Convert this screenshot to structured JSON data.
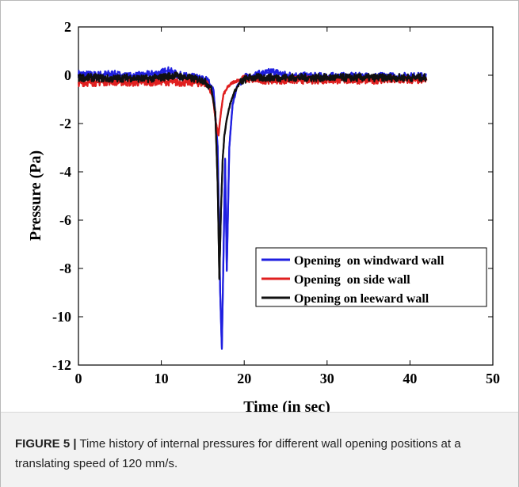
{
  "chart_data": {
    "type": "line",
    "xlabel": "Time (in sec)",
    "ylabel": "Pressure (Pa)",
    "xlim": [
      0,
      50
    ],
    "ylim": [
      -12,
      2
    ],
    "x_ticks": [
      0,
      10,
      20,
      30,
      40,
      50
    ],
    "y_ticks": [
      2,
      0,
      -2,
      -4,
      -6,
      -8,
      -10,
      -12
    ],
    "grid": false,
    "legend_position": "bottom-right",
    "series": [
      {
        "name": "Opening  on windward wall",
        "color": "#1f1fe0",
        "x": [
          0,
          2,
          4,
          6,
          8,
          10,
          10.8,
          12,
          14,
          15.5,
          16.3,
          16.8,
          17.1,
          17.3,
          17.5,
          17.7,
          17.9,
          18.2,
          18.6,
          19.2,
          20,
          22,
          23.5,
          25,
          28,
          32,
          36,
          40,
          42
        ],
        "y": [
          0.05,
          0.0,
          0.05,
          -0.05,
          0.0,
          0.1,
          0.2,
          0.0,
          -0.1,
          -0.2,
          -0.6,
          -3.0,
          -9.0,
          -11.3,
          -7.5,
          -3.5,
          -8.1,
          -3.0,
          -1.2,
          -0.4,
          -0.1,
          0.05,
          0.15,
          0.0,
          -0.05,
          -0.05,
          -0.05,
          -0.05,
          -0.05
        ]
      },
      {
        "name": "Opening  on side wall",
        "color": "#e01f1f",
        "x": [
          0,
          2,
          4,
          6,
          8,
          10,
          12,
          14,
          15.5,
          16.2,
          16.6,
          16.9,
          17.2,
          17.5,
          18,
          18.6,
          19.3,
          20,
          22,
          25,
          28,
          32,
          36,
          40,
          42
        ],
        "y": [
          -0.3,
          -0.3,
          -0.25,
          -0.3,
          -0.3,
          -0.25,
          -0.3,
          -0.3,
          -0.35,
          -0.9,
          -2.0,
          -2.5,
          -1.5,
          -0.8,
          -0.5,
          -0.3,
          -0.2,
          -0.15,
          -0.2,
          -0.2,
          -0.2,
          -0.2,
          -0.2,
          -0.2,
          -0.2
        ]
      },
      {
        "name": "Opening on leeward wall",
        "color": "#111111",
        "x": [
          0,
          2,
          4,
          6,
          8,
          10,
          11.5,
          13,
          15,
          16.0,
          16.5,
          16.8,
          17.0,
          17.2,
          17.4,
          17.6,
          17.9,
          18.3,
          18.8,
          19.5,
          20.5,
          22,
          25,
          28,
          32,
          36,
          40,
          42
        ],
        "y": [
          -0.1,
          -0.1,
          -0.15,
          -0.1,
          -0.15,
          -0.1,
          0.0,
          -0.1,
          -0.2,
          -0.5,
          -1.5,
          -4.5,
          -8.4,
          -5.6,
          -3.5,
          -2.5,
          -1.8,
          -1.2,
          -0.7,
          -0.3,
          -0.1,
          -0.1,
          -0.1,
          -0.1,
          -0.1,
          -0.1,
          -0.1,
          -0.1
        ]
      }
    ]
  },
  "caption": {
    "label": "FIGURE 5 |",
    "text": "Time history of internal pressures for different wall opening positions at a translating speed of 120 mm/s."
  }
}
